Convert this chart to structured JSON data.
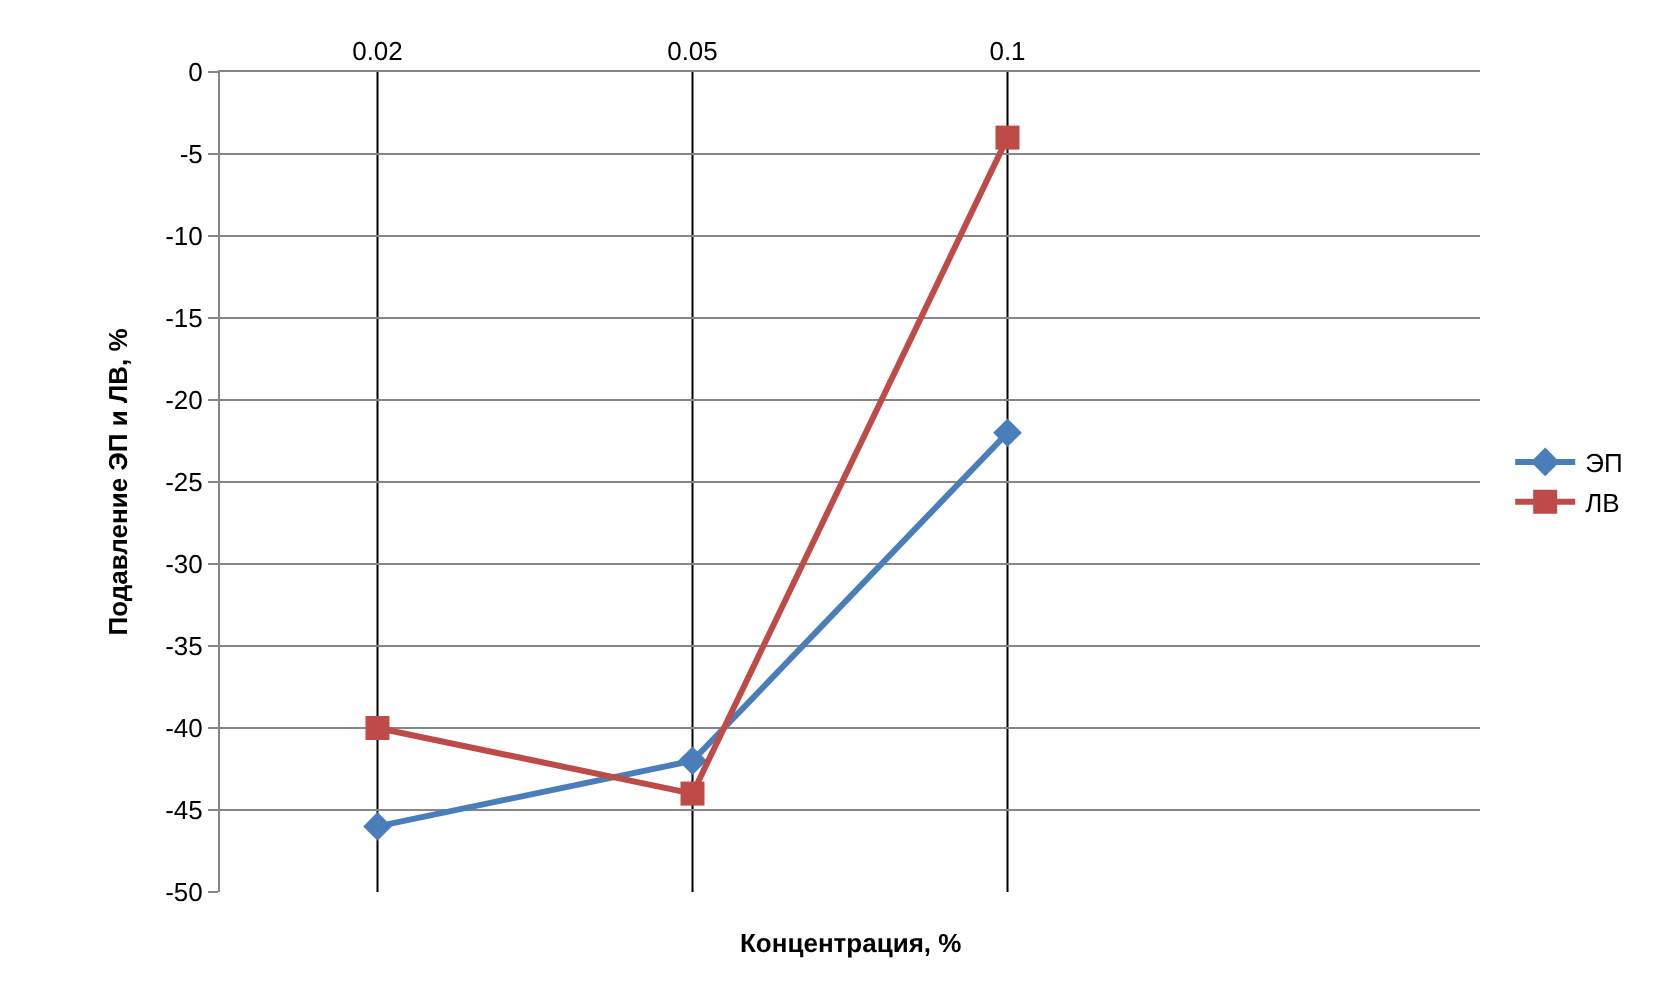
{
  "chart_data": {
    "type": "line",
    "xlabel": "Концентрация, %",
    "ylabel": "Подавление ЭП и ЛВ, %",
    "categories": [
      "0.02",
      "0.05",
      "0.1",
      null
    ],
    "series": [
      {
        "name": "ЭП",
        "color": "#4a7ebb",
        "values": [
          -46,
          -42,
          -22,
          null
        ],
        "marker": "diamond"
      },
      {
        "name": "ЛВ",
        "color": "#be4b48",
        "values": [
          -40,
          -44,
          -4,
          null
        ],
        "marker": "square"
      }
    ],
    "ylim": [
      -50,
      0
    ],
    "yticks": [
      -50,
      -45,
      -40,
      -35,
      -30,
      -25,
      -20,
      -15,
      -10,
      -5,
      0
    ],
    "grid": "y",
    "legend": "right",
    "line_style": "solid",
    "ref_lines": [
      {
        "axis": "x",
        "value": "0.02",
        "color": "#000000"
      },
      {
        "axis": "x",
        "value": "0.05",
        "color": "#000000"
      },
      {
        "axis": "x",
        "value": "0.1",
        "color": "#000000"
      }
    ]
  }
}
